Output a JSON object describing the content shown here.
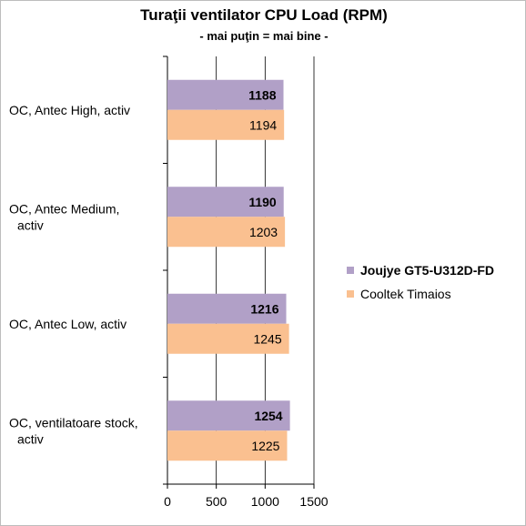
{
  "chart_data": {
    "type": "bar",
    "orientation": "horizontal",
    "title": "Turaţii ventilator CPU Load (RPM)",
    "subtitle": "- mai puţin = mai bine -",
    "categories": [
      [
        "OC, Antec High, activ"
      ],
      [
        "OC, Antec Medium,",
        "activ"
      ],
      [
        "OC, Antec Low, activ"
      ],
      [
        "OC, ventilatoare stock,",
        "activ"
      ]
    ],
    "series": [
      {
        "name": "Joujye GT5-U312D-FD",
        "values": [
          1188,
          1190,
          1216,
          1254
        ],
        "color": "#b1a0c7",
        "bold_labels": true
      },
      {
        "name": "Cooltek Timaios",
        "values": [
          1194,
          1203,
          1245,
          1225
        ],
        "color": "#fac090",
        "bold_labels": false
      }
    ],
    "xlim": [
      0,
      1500
    ],
    "xticks": [
      0,
      500,
      1000,
      1500
    ],
    "grid": true,
    "legend_position": "right"
  }
}
